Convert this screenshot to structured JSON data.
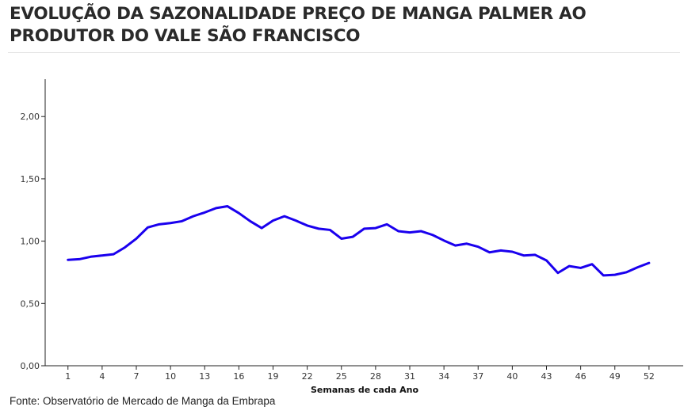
{
  "title": "EVOLUÇÃO DA SAZONALIDADE PREÇO DE MANGA PALMER AO PRODUTOR DO VALE SÃO FRANCISCO",
  "source": "Fonte: Observatório de Mercado de Manga da Embrapa",
  "colors": {
    "line": "#1a00ee",
    "axis": "#222222",
    "text": "#333333"
  },
  "chart_data": {
    "type": "line",
    "xlabel": "Semanas de cada Ano",
    "ylabel": "",
    "xlim": [
      -1,
      55
    ],
    "ylim": [
      0,
      2.3
    ],
    "x_ticks": [
      1,
      4,
      7,
      10,
      13,
      16,
      19,
      22,
      25,
      28,
      31,
      34,
      37,
      40,
      43,
      46,
      49,
      52
    ],
    "x_tick_labels": [
      "1",
      "4",
      "7",
      "10",
      "13",
      "16",
      "19",
      "22",
      "25",
      "28",
      "31",
      "34",
      "37",
      "40",
      "43",
      "46",
      "49",
      "52"
    ],
    "y_ticks": [
      0,
      0.5,
      1,
      1.5,
      2
    ],
    "y_tick_labels": [
      "0,00",
      "0,50",
      "1,00",
      "1,50",
      "2,00"
    ],
    "grid": false,
    "series": [
      {
        "x": [
          1,
          2,
          3,
          4,
          5,
          6,
          7,
          8,
          9,
          10,
          11,
          12,
          13,
          14,
          15,
          16,
          17,
          18,
          19,
          20,
          21,
          22,
          23,
          24,
          25,
          26,
          27,
          28,
          29,
          30,
          31,
          32,
          33,
          34,
          35,
          36,
          37,
          38,
          39,
          40,
          41,
          42,
          43,
          44,
          45,
          46,
          47,
          48,
          49,
          50,
          51,
          52
        ],
        "values": [
          0.85,
          0.855,
          0.875,
          0.885,
          0.895,
          0.95,
          1.02,
          1.11,
          1.135,
          1.145,
          1.16,
          1.2,
          1.23,
          1.265,
          1.28,
          1.225,
          1.16,
          1.105,
          1.165,
          1.2,
          1.165,
          1.125,
          1.1,
          1.09,
          1.02,
          1.035,
          1.1,
          1.105,
          1.135,
          1.08,
          1.07,
          1.08,
          1.05,
          1.005,
          0.965,
          0.98,
          0.955,
          0.91,
          0.925,
          0.915,
          0.885,
          0.89,
          0.845,
          0.745,
          0.8,
          0.785,
          0.815,
          0.725,
          0.73,
          0.75,
          0.79,
          0.825
        ]
      }
    ]
  }
}
